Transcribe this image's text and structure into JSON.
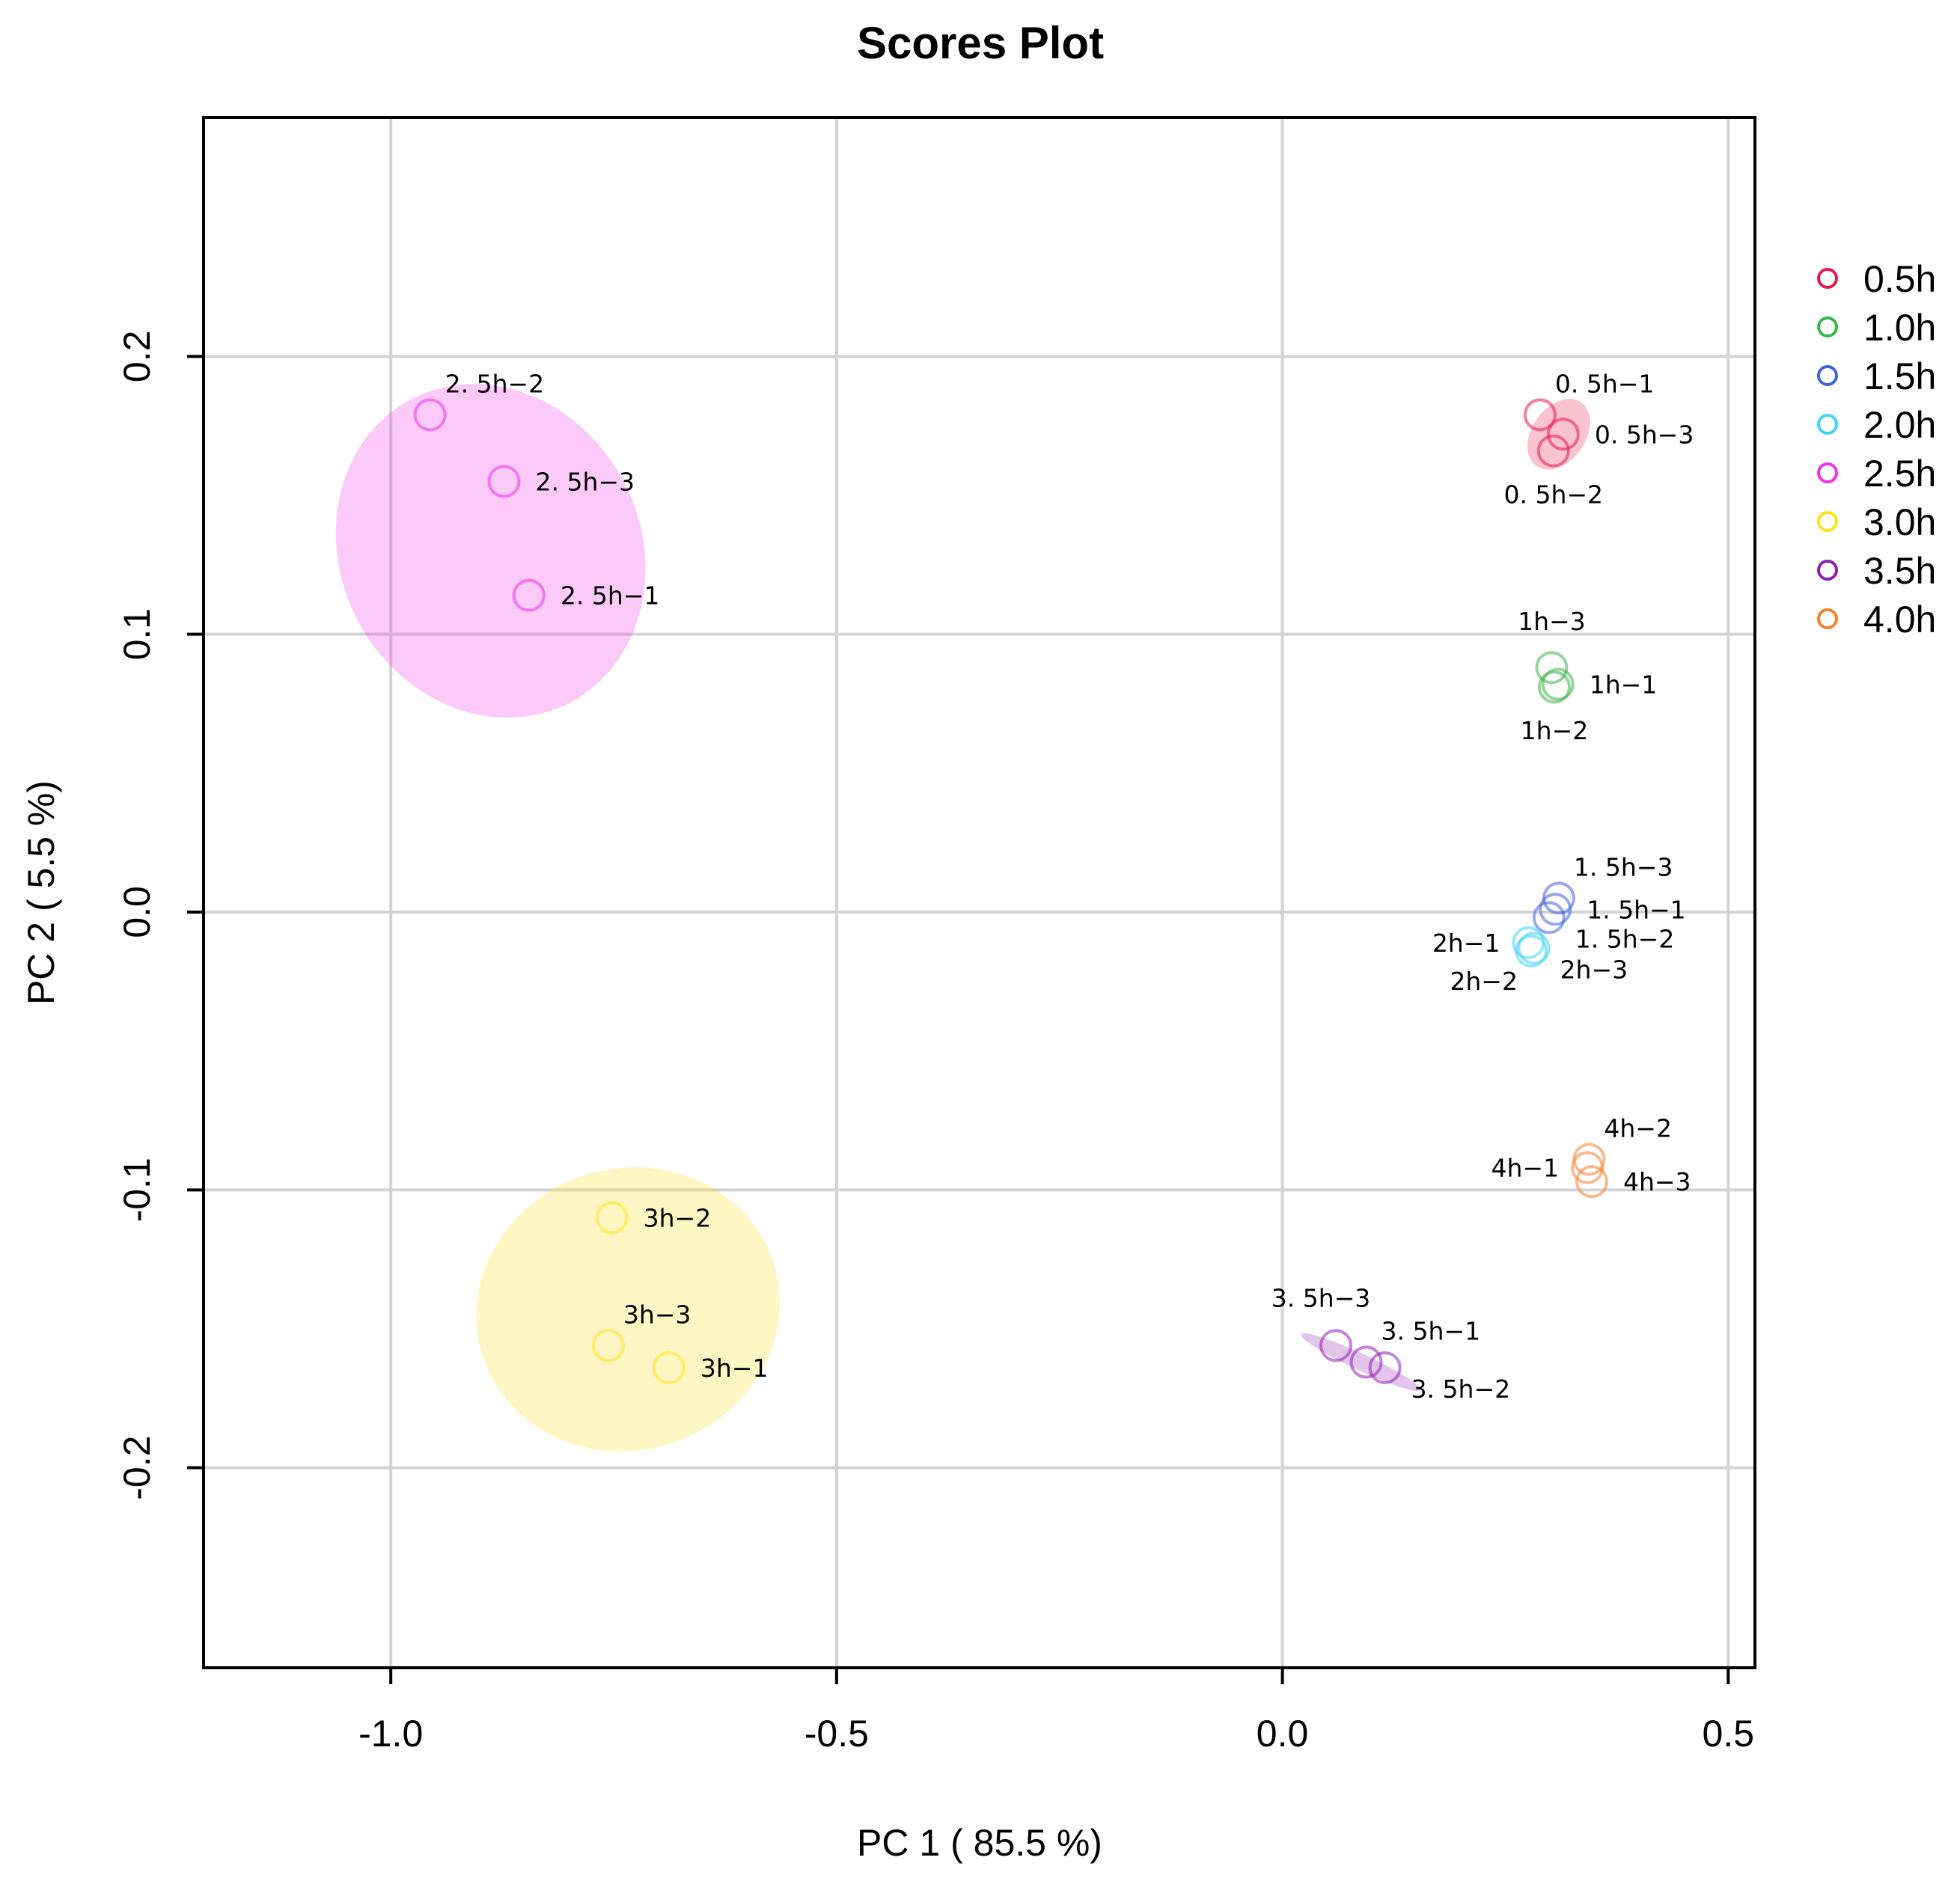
{
  "chart_data": {
    "type": "scatter",
    "title": "Scores Plot",
    "xlabel": "PC 1 ( 85.5 %)",
    "ylabel": "PC 2 ( 5.5 %)",
    "xlim": [
      -1.21,
      0.53
    ],
    "ylim": [
      -0.272,
      0.286
    ],
    "xticks": [
      -1.0,
      -0.5,
      0.0,
      0.5
    ],
    "xtick_labels": [
      "-1.0",
      "-0.5",
      "0.0",
      "0.5"
    ],
    "yticks": [
      -0.2,
      -0.1,
      0.0,
      0.1,
      0.2
    ],
    "ytick_labels": [
      "-0.2",
      "-0.1",
      "0.0",
      "0.1",
      "0.2"
    ],
    "grid": true,
    "legend_position": "right",
    "series": [
      {
        "name": "0.5h",
        "color": "#e6194b",
        "ellipse": {
          "cx": 0.31,
          "cy": 0.172,
          "rx": 0.03,
          "ry": 0.014,
          "angle": 35
        },
        "points": [
          {
            "label": "0. 5h−1",
            "x": 0.289,
            "y": 0.179,
            "label_pos": "top-right"
          },
          {
            "label": "0. 5h−3",
            "x": 0.315,
            "y": 0.172,
            "label_pos": "right"
          },
          {
            "label": "0. 5h−2",
            "x": 0.304,
            "y": 0.166,
            "label_pos": "bottom"
          }
        ]
      },
      {
        "name": "1.0h",
        "color": "#3cb44b",
        "points": [
          {
            "label": "1h−3",
            "x": 0.302,
            "y": 0.088,
            "label_pos": "top"
          },
          {
            "label": "1h−1",
            "x": 0.309,
            "y": 0.082,
            "label_pos": "right"
          },
          {
            "label": "1h−2",
            "x": 0.305,
            "y": 0.081,
            "label_pos": "bottom"
          }
        ]
      },
      {
        "name": "1.5h",
        "color": "#4363d8",
        "points": [
          {
            "label": "1. 5h−3",
            "x": 0.31,
            "y": 0.005,
            "label_pos": "top-right"
          },
          {
            "label": "1. 5h−1",
            "x": 0.306,
            "y": 0.001,
            "label_pos": "right"
          },
          {
            "label": "1. 5h−2",
            "x": 0.299,
            "y": -0.002,
            "label_pos": "bottom-right"
          }
        ]
      },
      {
        "name": "2.0h",
        "color": "#42d4f4",
        "points": [
          {
            "label": "2h−1",
            "x": 0.276,
            "y": -0.011,
            "label_pos": "left"
          },
          {
            "label": "2h−2",
            "x": 0.279,
            "y": -0.014,
            "label_pos": "bottom-left"
          },
          {
            "label": "2h−3",
            "x": 0.282,
            "y": -0.013,
            "label_pos": "bottom-right"
          }
        ]
      },
      {
        "name": "2.5h",
        "color": "#f032e6",
        "ellipse": {
          "cx": -0.888,
          "cy": 0.13,
          "rx": 0.192,
          "ry": 0.054,
          "angle": 62.4
        },
        "points": [
          {
            "label": "2. 5h−2",
            "x": -0.956,
            "y": 0.179,
            "label_pos": "top-right"
          },
          {
            "label": "2. 5h−3",
            "x": -0.873,
            "y": 0.155,
            "label_pos": "right"
          },
          {
            "label": "2. 5h−1",
            "x": -0.845,
            "y": 0.114,
            "label_pos": "right"
          }
        ]
      },
      {
        "name": "3.0h",
        "color": "#ffe119",
        "ellipse": {
          "cx": -0.734,
          "cy": -0.143,
          "rx": 0.158,
          "ry": 0.055,
          "angle": 71.9
        },
        "points": [
          {
            "label": "3h−2",
            "x": -0.752,
            "y": -0.11,
            "label_pos": "right"
          },
          {
            "label": "3h−3",
            "x": -0.756,
            "y": -0.156,
            "label_pos": "top-right"
          },
          {
            "label": "3h−1",
            "x": -0.688,
            "y": -0.164,
            "label_pos": "right"
          }
        ]
      },
      {
        "name": "3.5h",
        "color": "#911eb4",
        "ellipse": {
          "cx": 0.088,
          "cy": -0.162,
          "rx": 0.074,
          "ry": 0.003,
          "angle": 25
        },
        "points": [
          {
            "label": "3. 5h−3",
            "x": 0.06,
            "y": -0.156,
            "label_pos": "top-left"
          },
          {
            "label": "3. 5h−1",
            "x": 0.094,
            "y": -0.162,
            "label_pos": "top-right"
          },
          {
            "label": "3. 5h−2",
            "x": 0.115,
            "y": -0.164,
            "label_pos": "bottom-right"
          }
        ]
      },
      {
        "name": "4.0h",
        "color": "#f58231",
        "points": [
          {
            "label": "4h−2",
            "x": 0.344,
            "y": -0.089,
            "label_pos": "top-right"
          },
          {
            "label": "4h−1",
            "x": 0.342,
            "y": -0.092,
            "label_pos": "left"
          },
          {
            "label": "4h−3",
            "x": 0.347,
            "y": -0.097,
            "label_pos": "right"
          }
        ]
      }
    ]
  }
}
